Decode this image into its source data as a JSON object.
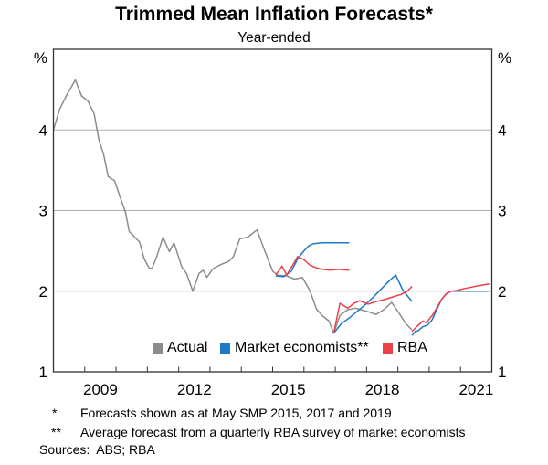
{
  "chart_data": {
    "type": "line",
    "title": "Trimmed Mean Inflation Forecasts*",
    "subtitle": "Year-ended",
    "y_axis": {
      "unit_left": "%",
      "unit_right": "%",
      "range": [
        1,
        5
      ],
      "gridlines": [
        2,
        3,
        4
      ],
      "tick_labels": [
        1,
        2,
        3,
        4
      ]
    },
    "x_axis": {
      "range": [
        2008,
        2022
      ],
      "tick_years": [
        2009,
        2010,
        2011,
        2012,
        2013,
        2014,
        2015,
        2016,
        2017,
        2018,
        2019,
        2020,
        2021
      ],
      "labels": [
        2009,
        2012,
        2015,
        2018,
        2021
      ]
    },
    "colors": {
      "actual": "#8c8c8c",
      "market_economists": "#1f78c8",
      "rba": "#ec404a",
      "gridline": "#b0b0b0",
      "axis": "#333333"
    },
    "series": [
      {
        "id": "actual",
        "name": "Actual",
        "color": "#8c8c8c",
        "points": [
          [
            2008.0,
            4.0
          ],
          [
            2008.2,
            4.26
          ],
          [
            2008.45,
            4.45
          ],
          [
            2008.7,
            4.62
          ],
          [
            2008.9,
            4.42
          ],
          [
            2009.1,
            4.36
          ],
          [
            2009.3,
            4.2
          ],
          [
            2009.45,
            3.88
          ],
          [
            2009.6,
            3.7
          ],
          [
            2009.75,
            3.42
          ],
          [
            2009.95,
            3.37
          ],
          [
            2010.1,
            3.2
          ],
          [
            2010.3,
            2.98
          ],
          [
            2010.42,
            2.74
          ],
          [
            2010.6,
            2.67
          ],
          [
            2010.75,
            2.61
          ],
          [
            2010.9,
            2.4
          ],
          [
            2011.05,
            2.29
          ],
          [
            2011.15,
            2.28
          ],
          [
            2011.3,
            2.43
          ],
          [
            2011.5,
            2.67
          ],
          [
            2011.7,
            2.49
          ],
          [
            2011.85,
            2.6
          ],
          [
            2012.1,
            2.3
          ],
          [
            2012.25,
            2.22
          ],
          [
            2012.45,
            2.0
          ],
          [
            2012.65,
            2.22
          ],
          [
            2012.78,
            2.26
          ],
          [
            2012.9,
            2.17
          ],
          [
            2013.1,
            2.28
          ],
          [
            2013.35,
            2.33
          ],
          [
            2013.6,
            2.37
          ],
          [
            2013.75,
            2.43
          ],
          [
            2013.95,
            2.65
          ],
          [
            2014.2,
            2.67
          ],
          [
            2014.5,
            2.76
          ],
          [
            2014.75,
            2.5
          ],
          [
            2015.0,
            2.25
          ],
          [
            2015.15,
            2.2
          ],
          [
            2015.45,
            2.19
          ],
          [
            2015.7,
            2.15
          ],
          [
            2015.95,
            2.17
          ],
          [
            2016.2,
            2.0
          ],
          [
            2016.4,
            1.78
          ],
          [
            2016.6,
            1.69
          ],
          [
            2016.8,
            1.63
          ],
          [
            2016.95,
            1.48
          ],
          [
            2017.15,
            1.7
          ],
          [
            2017.4,
            1.77
          ],
          [
            2017.65,
            1.79
          ],
          [
            2017.9,
            1.76
          ],
          [
            2018.1,
            1.74
          ],
          [
            2018.3,
            1.71
          ],
          [
            2018.55,
            1.77
          ],
          [
            2018.8,
            1.86
          ],
          [
            2019.05,
            1.72
          ],
          [
            2019.25,
            1.6
          ],
          [
            2019.45,
            1.52
          ]
        ]
      },
      {
        "id": "me2015",
        "name": "Market economists forecast May SMP 2015",
        "color": "#1f78c8",
        "points": [
          [
            2015.1,
            2.19
          ],
          [
            2015.35,
            2.18
          ],
          [
            2015.6,
            2.25
          ],
          [
            2015.8,
            2.4
          ],
          [
            2016.0,
            2.5
          ],
          [
            2016.15,
            2.56
          ],
          [
            2016.3,
            2.59
          ],
          [
            2016.6,
            2.6
          ],
          [
            2016.9,
            2.6
          ],
          [
            2017.2,
            2.6
          ],
          [
            2017.45,
            2.6
          ]
        ]
      },
      {
        "id": "rba2015",
        "name": "RBA forecast May SMP 2015",
        "color": "#ec404a",
        "points": [
          [
            2015.1,
            2.2
          ],
          [
            2015.3,
            2.31
          ],
          [
            2015.45,
            2.2
          ],
          [
            2015.65,
            2.33
          ],
          [
            2015.8,
            2.43
          ],
          [
            2016.0,
            2.39
          ],
          [
            2016.2,
            2.32
          ],
          [
            2016.4,
            2.29
          ],
          [
            2016.6,
            2.27
          ],
          [
            2016.85,
            2.26
          ],
          [
            2017.1,
            2.27
          ],
          [
            2017.45,
            2.26
          ]
        ]
      },
      {
        "id": "me2017",
        "name": "Market economists forecast May SMP 2017",
        "color": "#1f78c8",
        "points": [
          [
            2016.95,
            1.48
          ],
          [
            2017.2,
            1.6
          ],
          [
            2017.45,
            1.67
          ],
          [
            2017.7,
            1.75
          ],
          [
            2017.95,
            1.83
          ],
          [
            2018.2,
            1.92
          ],
          [
            2018.45,
            2.02
          ],
          [
            2018.7,
            2.12
          ],
          [
            2018.93,
            2.2
          ],
          [
            2019.15,
            2.02
          ],
          [
            2019.45,
            1.87
          ]
        ]
      },
      {
        "id": "rba2017",
        "name": "RBA forecast May SMP 2017",
        "color": "#ec404a",
        "points": [
          [
            2016.95,
            1.48
          ],
          [
            2017.15,
            1.85
          ],
          [
            2017.4,
            1.79
          ],
          [
            2017.6,
            1.85
          ],
          [
            2017.78,
            1.88
          ],
          [
            2018.05,
            1.84
          ],
          [
            2018.3,
            1.87
          ],
          [
            2018.6,
            1.9
          ],
          [
            2018.85,
            1.93
          ],
          [
            2019.1,
            1.96
          ],
          [
            2019.3,
            2.0
          ],
          [
            2019.45,
            2.06
          ]
        ]
      },
      {
        "id": "me2019",
        "name": "Market economists forecast May SMP 2019",
        "color": "#1f78c8",
        "points": [
          [
            2019.45,
            1.45
          ],
          [
            2019.55,
            1.5
          ],
          [
            2019.65,
            1.51
          ],
          [
            2019.8,
            1.56
          ],
          [
            2019.95,
            1.58
          ],
          [
            2020.1,
            1.65
          ],
          [
            2020.25,
            1.78
          ],
          [
            2020.4,
            1.9
          ],
          [
            2020.55,
            1.97
          ],
          [
            2020.7,
            2.0
          ],
          [
            2021.1,
            2.0
          ],
          [
            2021.5,
            2.0
          ],
          [
            2021.9,
            2.0
          ]
        ]
      },
      {
        "id": "rba2019",
        "name": "RBA forecast May SMP 2019",
        "color": "#ec404a",
        "points": [
          [
            2019.45,
            1.5
          ],
          [
            2019.6,
            1.56
          ],
          [
            2019.8,
            1.63
          ],
          [
            2019.9,
            1.61
          ],
          [
            2020.1,
            1.7
          ],
          [
            2020.25,
            1.8
          ],
          [
            2020.4,
            1.9
          ],
          [
            2020.55,
            1.97
          ],
          [
            2020.7,
            2.0
          ],
          [
            2020.9,
            2.01
          ],
          [
            2021.1,
            2.03
          ],
          [
            2021.35,
            2.05
          ],
          [
            2021.6,
            2.07
          ],
          [
            2021.92,
            2.09
          ]
        ]
      }
    ],
    "legend": [
      {
        "label": "Actual",
        "color": "#8c8c8c"
      },
      {
        "label": "Market economists**",
        "color": "#1f78c8"
      },
      {
        "label": "RBA",
        "color": "#ec404a"
      }
    ]
  },
  "footnotes": {
    "fn1_marker": "*",
    "fn1_text": "Forecasts shown as at May SMP 2015, 2017 and 2019",
    "fn2_marker": "**",
    "fn2_text": "Average forecast from a quarterly RBA survey of market economists",
    "sources": "Sources:  ABS; RBA"
  }
}
